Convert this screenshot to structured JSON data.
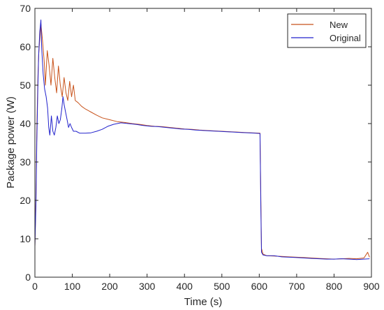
{
  "chart_data": {
    "type": "line",
    "title": "",
    "xlabel": "Time (s)",
    "ylabel": "Package power (W)",
    "xlim": [
      0,
      900
    ],
    "ylim": [
      0,
      70
    ],
    "xticks": [
      0,
      100,
      200,
      300,
      400,
      500,
      600,
      700,
      800,
      900
    ],
    "yticks": [
      0,
      10,
      20,
      30,
      40,
      50,
      60,
      70
    ],
    "xtick_labels": [
      "0",
      "100",
      "200",
      "300",
      "400",
      "500",
      "600",
      "700",
      "800",
      "900"
    ],
    "ytick_labels": [
      "0",
      "10",
      "20",
      "30",
      "40",
      "50",
      "60",
      "70"
    ],
    "grid": false,
    "legend_position": "top-right",
    "series": [
      {
        "name": "New",
        "color": "#c8521a",
        "points": [
          [
            0,
            8
          ],
          [
            3,
            22
          ],
          [
            5,
            38
          ],
          [
            8,
            52
          ],
          [
            10,
            58
          ],
          [
            13,
            62
          ],
          [
            16,
            66
          ],
          [
            20,
            62
          ],
          [
            25,
            56
          ],
          [
            28,
            50
          ],
          [
            33,
            59
          ],
          [
            38,
            55
          ],
          [
            43,
            50
          ],
          [
            48,
            57
          ],
          [
            53,
            52
          ],
          [
            58,
            48
          ],
          [
            63,
            55
          ],
          [
            68,
            50
          ],
          [
            73,
            47
          ],
          [
            78,
            52
          ],
          [
            83,
            48
          ],
          [
            88,
            46
          ],
          [
            93,
            51
          ],
          [
            98,
            47
          ],
          [
            103,
            50
          ],
          [
            108,
            46
          ],
          [
            115,
            45.5
          ],
          [
            125,
            44.5
          ],
          [
            135,
            43.8
          ],
          [
            150,
            43
          ],
          [
            165,
            42.2
          ],
          [
            180,
            41.5
          ],
          [
            200,
            41
          ],
          [
            220,
            40.5
          ],
          [
            240,
            40.3
          ],
          [
            260,
            40
          ],
          [
            280,
            39.8
          ],
          [
            300,
            39.5
          ],
          [
            320,
            39.3
          ],
          [
            340,
            39.2
          ],
          [
            360,
            39
          ],
          [
            380,
            38.8
          ],
          [
            400,
            38.6
          ],
          [
            420,
            38.5
          ],
          [
            440,
            38.3
          ],
          [
            460,
            38.2
          ],
          [
            480,
            38.1
          ],
          [
            500,
            38
          ],
          [
            520,
            37.9
          ],
          [
            540,
            37.8
          ],
          [
            560,
            37.7
          ],
          [
            580,
            37.6
          ],
          [
            602,
            37.5
          ],
          [
            604,
            22
          ],
          [
            606,
            7.5
          ],
          [
            610,
            6
          ],
          [
            620,
            5.6
          ],
          [
            640,
            5.5
          ],
          [
            660,
            5.4
          ],
          [
            680,
            5.3
          ],
          [
            700,
            5.2
          ],
          [
            720,
            5.1
          ],
          [
            740,
            5
          ],
          [
            760,
            4.9
          ],
          [
            780,
            4.8
          ],
          [
            800,
            4.7
          ],
          [
            820,
            4.8
          ],
          [
            840,
            4.9
          ],
          [
            860,
            4.8
          ],
          [
            880,
            5
          ],
          [
            890,
            6.5
          ],
          [
            895,
            5.2
          ]
        ]
      },
      {
        "name": "Original",
        "color": "#2222cc",
        "points": [
          [
            0,
            8
          ],
          [
            3,
            20
          ],
          [
            5,
            35
          ],
          [
            8,
            50
          ],
          [
            10,
            58
          ],
          [
            13,
            64
          ],
          [
            16,
            67
          ],
          [
            18,
            60
          ],
          [
            22,
            53
          ],
          [
            26,
            49
          ],
          [
            30,
            47
          ],
          [
            34,
            44
          ],
          [
            37,
            39
          ],
          [
            40,
            37
          ],
          [
            44,
            42
          ],
          [
            48,
            38
          ],
          [
            52,
            37
          ],
          [
            56,
            39
          ],
          [
            60,
            42
          ],
          [
            64,
            40
          ],
          [
            68,
            41
          ],
          [
            72,
            44
          ],
          [
            75,
            47
          ],
          [
            78,
            45
          ],
          [
            82,
            43
          ],
          [
            86,
            41
          ],
          [
            90,
            39
          ],
          [
            94,
            40
          ],
          [
            98,
            39
          ],
          [
            103,
            38
          ],
          [
            110,
            38
          ],
          [
            120,
            37.5
          ],
          [
            135,
            37.5
          ],
          [
            150,
            37.6
          ],
          [
            165,
            38
          ],
          [
            180,
            38.5
          ],
          [
            195,
            39.3
          ],
          [
            210,
            39.8
          ],
          [
            230,
            40.2
          ],
          [
            250,
            40
          ],
          [
            270,
            39.8
          ],
          [
            290,
            39.5
          ],
          [
            310,
            39.3
          ],
          [
            330,
            39.2
          ],
          [
            350,
            39
          ],
          [
            370,
            38.8
          ],
          [
            390,
            38.6
          ],
          [
            410,
            38.5
          ],
          [
            430,
            38.3
          ],
          [
            450,
            38.2
          ],
          [
            470,
            38.1
          ],
          [
            490,
            38
          ],
          [
            510,
            37.9
          ],
          [
            530,
            37.8
          ],
          [
            550,
            37.7
          ],
          [
            570,
            37.6
          ],
          [
            590,
            37.5
          ],
          [
            602,
            37.4
          ],
          [
            604,
            20
          ],
          [
            606,
            6.5
          ],
          [
            610,
            5.8
          ],
          [
            620,
            5.6
          ],
          [
            640,
            5.6
          ],
          [
            660,
            5.3
          ],
          [
            680,
            5.2
          ],
          [
            700,
            5.1
          ],
          [
            720,
            5
          ],
          [
            740,
            4.9
          ],
          [
            760,
            4.8
          ],
          [
            780,
            4.7
          ],
          [
            800,
            4.7
          ],
          [
            820,
            4.8
          ],
          [
            840,
            4.7
          ],
          [
            860,
            4.6
          ],
          [
            880,
            4.7
          ],
          [
            895,
            4.8
          ]
        ]
      }
    ]
  }
}
